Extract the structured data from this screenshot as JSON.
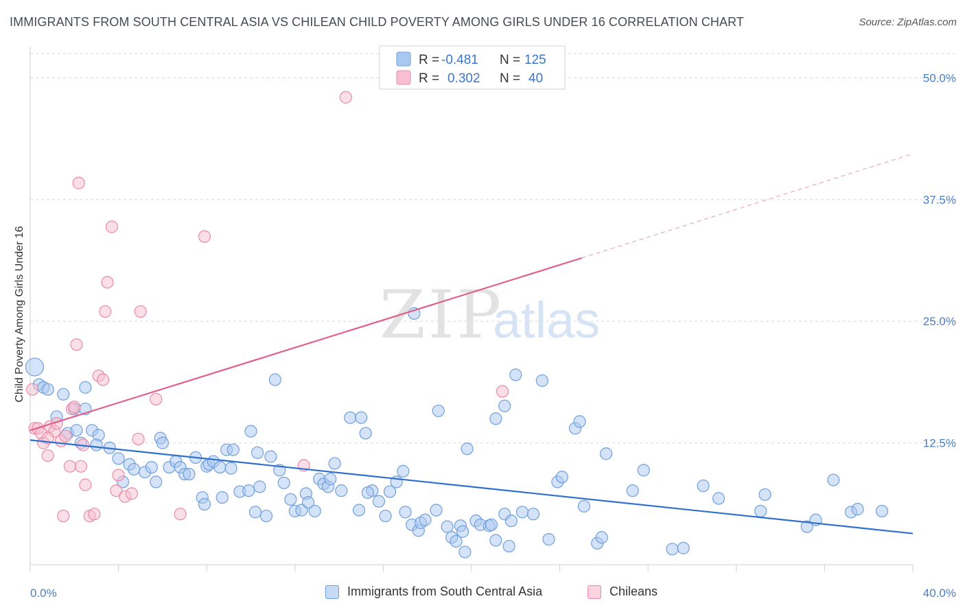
{
  "header": {
    "title": "IMMIGRANTS FROM SOUTH CENTRAL ASIA VS CHILEAN CHILD POVERTY AMONG GIRLS UNDER 16 CORRELATION CHART",
    "source": "Source: ZipAtlas.com"
  },
  "watermark": {
    "zip": "ZIP",
    "atlas": "atlas"
  },
  "legend_top": {
    "rows": [
      {
        "r_label": "R =",
        "r_value": "-0.481",
        "n_label": "N =",
        "n_value": "125",
        "color": "#a9c8f0",
        "stroke": "#6d9fdc"
      },
      {
        "r_label": "R =",
        "r_value": "0.302",
        "n_label": "N =",
        "n_value": "40",
        "color": "#f7bfd0",
        "stroke": "#e88aa8"
      }
    ]
  },
  "legend_bottom": {
    "items": [
      {
        "label": "Immigrants from South Central Asia",
        "color": "#c5daf5",
        "stroke": "#6d9fdc"
      },
      {
        "label": "Chileans",
        "color": "#fbd3df",
        "stroke": "#e88aa8"
      }
    ]
  },
  "colors": {
    "blue_fill": "#a9c8f0",
    "blue_stroke": "#6f9fdc",
    "blue_line": "#2f6fcd",
    "pink_fill": "#f7bfd0",
    "pink_stroke": "#e88aa8",
    "pink_line": "#e0608a",
    "grid": "#d8d8d8",
    "tick_text": "#4a7fc4"
  },
  "chart_data": {
    "type": "scatter",
    "title": "IMMIGRANTS FROM SOUTH CENTRAL ASIA VS CHILEAN CHILD POVERTY AMONG GIRLS UNDER 16 CORRELATION CHART",
    "xlabel": "",
    "ylabel": "Child Poverty Among Girls Under 16",
    "xlim": [
      0,
      40
    ],
    "ylim": [
      0,
      52.5
    ],
    "x_ticks": [
      {
        "value": 0,
        "label": "0.0%"
      },
      {
        "value": 40,
        "label": "40.0%"
      }
    ],
    "y_ticks": [
      {
        "value": 12.5,
        "label": "12.5%"
      },
      {
        "value": 25,
        "label": "25.0%"
      },
      {
        "value": 37.5,
        "label": "37.5%"
      },
      {
        "value": 50,
        "label": "50.0%"
      }
    ],
    "grid": "horizontal-dashed",
    "legend_position": "top-center",
    "series": [
      {
        "name": "Immigrants from South Central Asia",
        "R": -0.481,
        "N": 125,
        "points": [
          [
            0.2,
            20.3
          ],
          [
            0.4,
            18.5
          ],
          [
            0.6,
            18.2
          ],
          [
            0.8,
            18.0
          ],
          [
            1.5,
            17.5
          ],
          [
            2.5,
            18.2
          ],
          [
            1.2,
            15.2
          ],
          [
            1.7,
            13.5
          ],
          [
            2.0,
            16.0
          ],
          [
            2.5,
            16.0
          ],
          [
            2.1,
            13.8
          ],
          [
            2.3,
            12.5
          ],
          [
            2.8,
            13.8
          ],
          [
            3.1,
            13.3
          ],
          [
            3.0,
            12.3
          ],
          [
            3.6,
            12.0
          ],
          [
            4.0,
            10.9
          ],
          [
            4.5,
            10.3
          ],
          [
            4.7,
            9.8
          ],
          [
            5.2,
            9.5
          ],
          [
            4.2,
            8.5
          ],
          [
            5.5,
            10.0
          ],
          [
            5.7,
            8.5
          ],
          [
            5.9,
            13.0
          ],
          [
            6.0,
            12.5
          ],
          [
            6.3,
            10.0
          ],
          [
            6.6,
            10.6
          ],
          [
            6.8,
            10.0
          ],
          [
            7.0,
            9.3
          ],
          [
            7.2,
            9.3
          ],
          [
            7.5,
            11.0
          ],
          [
            7.8,
            6.9
          ],
          [
            7.9,
            6.2
          ],
          [
            8.0,
            10.1
          ],
          [
            8.1,
            10.3
          ],
          [
            8.3,
            10.6
          ],
          [
            8.6,
            10.0
          ],
          [
            8.7,
            6.9
          ],
          [
            8.9,
            11.8
          ],
          [
            9.1,
            9.9
          ],
          [
            9.2,
            11.8
          ],
          [
            9.5,
            7.5
          ],
          [
            9.9,
            7.6
          ],
          [
            10.0,
            13.7
          ],
          [
            10.3,
            11.5
          ],
          [
            10.2,
            5.4
          ],
          [
            10.4,
            8.0
          ],
          [
            10.7,
            5.0
          ],
          [
            10.9,
            11.1
          ],
          [
            11.1,
            19.0
          ],
          [
            11.3,
            9.7
          ],
          [
            11.5,
            8.4
          ],
          [
            11.8,
            6.7
          ],
          [
            12.0,
            5.5
          ],
          [
            12.3,
            5.6
          ],
          [
            12.5,
            7.3
          ],
          [
            12.6,
            6.4
          ],
          [
            12.9,
            5.5
          ],
          [
            13.1,
            8.8
          ],
          [
            13.3,
            8.3
          ],
          [
            13.5,
            8.0
          ],
          [
            13.6,
            8.8
          ],
          [
            13.8,
            10.4
          ],
          [
            14.1,
            7.6
          ],
          [
            14.5,
            15.1
          ],
          [
            14.9,
            5.6
          ],
          [
            15.0,
            15.1
          ],
          [
            15.2,
            13.5
          ],
          [
            15.5,
            7.6
          ],
          [
            15.3,
            7.4
          ],
          [
            15.8,
            6.5
          ],
          [
            16.1,
            5.0
          ],
          [
            16.3,
            7.5
          ],
          [
            16.6,
            8.5
          ],
          [
            16.9,
            9.6
          ],
          [
            17.0,
            5.4
          ],
          [
            17.3,
            4.1
          ],
          [
            17.6,
            3.5
          ],
          [
            17.7,
            4.3
          ],
          [
            17.9,
            4.6
          ],
          [
            17.4,
            25.8
          ],
          [
            18.4,
            5.6
          ],
          [
            18.5,
            15.8
          ],
          [
            18.9,
            3.9
          ],
          [
            19.1,
            2.8
          ],
          [
            19.3,
            2.4
          ],
          [
            19.5,
            4.0
          ],
          [
            19.6,
            3.4
          ],
          [
            19.8,
            11.9
          ],
          [
            19.7,
            1.3
          ],
          [
            20.2,
            4.5
          ],
          [
            20.4,
            4.1
          ],
          [
            20.8,
            4.0
          ],
          [
            21.1,
            2.5
          ],
          [
            20.9,
            4.1
          ],
          [
            21.5,
            5.2
          ],
          [
            21.7,
            1.9
          ],
          [
            21.8,
            4.5
          ],
          [
            22.3,
            5.4
          ],
          [
            22.8,
            5.2
          ],
          [
            21.5,
            16.3
          ],
          [
            21.1,
            15.0
          ],
          [
            22.0,
            19.5
          ],
          [
            23.2,
            18.9
          ],
          [
            23.5,
            2.6
          ],
          [
            23.9,
            8.5
          ],
          [
            24.1,
            9.0
          ],
          [
            24.7,
            14.0
          ],
          [
            24.9,
            14.7
          ],
          [
            25.1,
            6.0
          ],
          [
            25.7,
            2.2
          ],
          [
            25.9,
            2.8
          ],
          [
            26.1,
            11.4
          ],
          [
            27.3,
            7.6
          ],
          [
            27.8,
            9.7
          ],
          [
            29.1,
            1.6
          ],
          [
            29.6,
            1.7
          ],
          [
            30.5,
            8.1
          ],
          [
            31.2,
            6.8
          ],
          [
            33.1,
            5.5
          ],
          [
            33.3,
            7.2
          ],
          [
            35.2,
            3.9
          ],
          [
            35.6,
            4.6
          ],
          [
            36.4,
            8.7
          ],
          [
            37.2,
            5.4
          ],
          [
            37.5,
            5.7
          ],
          [
            38.6,
            5.5
          ]
        ],
        "trend": {
          "x0": 0,
          "y0": 12.8,
          "x1": 40,
          "y1": 3.2
        }
      },
      {
        "name": "Chileans",
        "R": 0.302,
        "N": 40,
        "points": [
          [
            0.1,
            18.0
          ],
          [
            0.2,
            14.0
          ],
          [
            0.35,
            14.0
          ],
          [
            0.5,
            13.5
          ],
          [
            0.6,
            12.5
          ],
          [
            0.8,
            11.2
          ],
          [
            0.9,
            14.2
          ],
          [
            1.1,
            13.7
          ],
          [
            1.2,
            14.5
          ],
          [
            1.4,
            12.7
          ],
          [
            1.6,
            13.2
          ],
          [
            1.8,
            10.1
          ],
          [
            1.9,
            16.0
          ],
          [
            2.0,
            16.2
          ],
          [
            2.1,
            22.6
          ],
          [
            2.2,
            39.2
          ],
          [
            2.3,
            10.1
          ],
          [
            2.4,
            12.3
          ],
          [
            2.5,
            8.2
          ],
          [
            3.1,
            19.4
          ],
          [
            3.3,
            19.0
          ],
          [
            3.4,
            26.0
          ],
          [
            3.5,
            29.0
          ],
          [
            3.7,
            34.7
          ],
          [
            3.9,
            7.6
          ],
          [
            4.0,
            9.2
          ],
          [
            4.3,
            7.0
          ],
          [
            4.6,
            7.3
          ],
          [
            4.9,
            12.9
          ],
          [
            5.0,
            26.0
          ],
          [
            5.7,
            17.0
          ],
          [
            6.8,
            5.2
          ],
          [
            7.9,
            33.7
          ],
          [
            12.4,
            10.2
          ],
          [
            14.3,
            48.0
          ],
          [
            21.4,
            17.8
          ],
          [
            1.5,
            5.0
          ],
          [
            2.7,
            5.0
          ],
          [
            2.9,
            5.2
          ],
          [
            0.8,
            13.0
          ]
        ],
        "trend": {
          "x0": 0,
          "y0": 13.8,
          "x1": 25,
          "y1": 31.5
        },
        "trend_extension": {
          "x0": 25,
          "y0": 31.5,
          "x1": 40,
          "y1": 42.2
        }
      }
    ]
  }
}
